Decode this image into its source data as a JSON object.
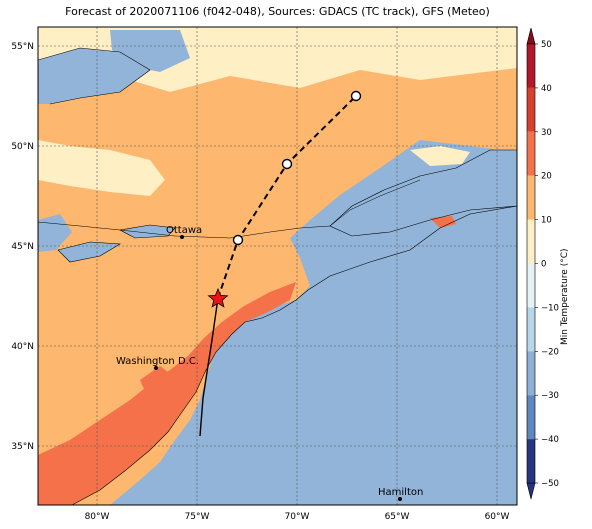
{
  "title": "Forecast of 2020071106 (f042-048), Sources: GDACS (TC track), GFS (Meteo)",
  "colorbar": {
    "label": "Min Temperature (°C)",
    "ticks": [
      "50",
      "40",
      "30",
      "20",
      "10",
      "0",
      "−10",
      "−20",
      "−30",
      "−40",
      "−50"
    ],
    "colors": [
      "#8b0a1a",
      "#b2182b",
      "#d6402f",
      "#f4714a",
      "#fdb76e",
      "#ffefc4",
      "#e4f2f6",
      "#b7d6e8",
      "#8db1d6",
      "#5c87c1",
      "#27357f"
    ]
  },
  "axes": {
    "lat_labels": [
      "55°N",
      "50°N",
      "45°N",
      "40°N",
      "35°N"
    ],
    "lon_labels": [
      "80°W",
      "75°W",
      "70°W",
      "65°W",
      "60°W"
    ]
  },
  "cities": {
    "ottawa": "Ottawa",
    "washington": "Washington D.C.",
    "hamilton": "Hamilton"
  },
  "colors": {
    "ocean": "#91b4d8",
    "cool": "#ffefc4",
    "mild": "#fdb76e",
    "warm": "#f4714a",
    "hot": "#d6402f"
  }
}
